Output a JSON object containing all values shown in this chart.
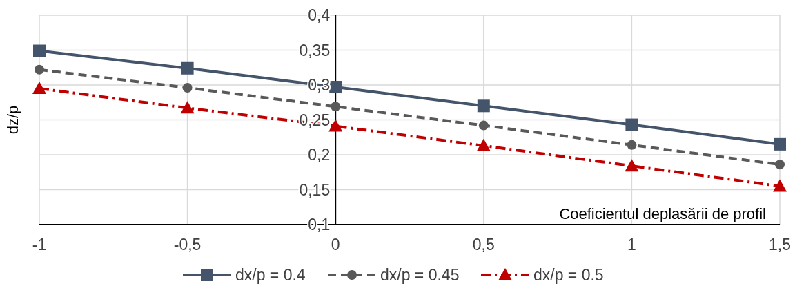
{
  "chart_data": {
    "type": "line",
    "xlabel": "Coeficientul deplasării de profil",
    "ylabel": "dz/p",
    "x": [
      -1,
      -0.5,
      0,
      0.5,
      1,
      1.5
    ],
    "xlim": [
      -1,
      1.5
    ],
    "xticks": [
      {
        "value": -1,
        "label": "-1"
      },
      {
        "value": -0.5,
        "label": "-0,5"
      },
      {
        "value": 0,
        "label": "0"
      },
      {
        "value": 0.5,
        "label": "0,5"
      },
      {
        "value": 1,
        "label": "1"
      },
      {
        "value": 1.5,
        "label": "1,5"
      }
    ],
    "ylim": [
      0.1,
      0.4
    ],
    "yticks": [
      {
        "value": 0.1,
        "label": "0,1"
      },
      {
        "value": 0.15,
        "label": "0,15"
      },
      {
        "value": 0.2,
        "label": "0,2"
      },
      {
        "value": 0.25,
        "label": "0,25"
      },
      {
        "value": 0.3,
        "label": "0,3"
      },
      {
        "value": 0.35,
        "label": "0,35"
      },
      {
        "value": 0.4,
        "label": "0,4"
      }
    ],
    "grid": true,
    "legend": "bottom",
    "series": [
      {
        "name": "dx/p = 0.4",
        "color": "#44546a",
        "marker": "square",
        "line_style": "solid",
        "values": [
          0.349,
          0.324,
          0.297,
          0.27,
          0.243,
          0.215
        ]
      },
      {
        "name": "dx/p = 0.45",
        "color": "#595959",
        "marker": "circle",
        "line_style": "dashed",
        "values": [
          0.322,
          0.296,
          0.269,
          0.242,
          0.214,
          0.186
        ]
      },
      {
        "name": "dx/p = 0.5",
        "color": "#c00000",
        "marker": "triangle",
        "line_style": "dotted",
        "values": [
          0.295,
          0.267,
          0.241,
          0.213,
          0.184,
          0.155
        ]
      }
    ]
  }
}
